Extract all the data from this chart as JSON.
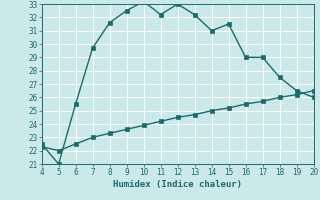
{
  "xlabel": "Humidex (Indice chaleur)",
  "bg_color": "#cce9e9",
  "line_color": "#1a6b6b",
  "grid_color": "#b8d8d8",
  "xlim": [
    4,
    20
  ],
  "ylim": [
    21,
    33
  ],
  "xticks": [
    4,
    5,
    6,
    7,
    8,
    9,
    10,
    11,
    12,
    13,
    14,
    15,
    16,
    17,
    18,
    19,
    20
  ],
  "yticks": [
    21,
    22,
    23,
    24,
    25,
    26,
    27,
    28,
    29,
    30,
    31,
    32,
    33
  ],
  "curve1_x": [
    4,
    5,
    6,
    7,
    8,
    9,
    10,
    11,
    12,
    13,
    14,
    15,
    16,
    17,
    18,
    19,
    20
  ],
  "curve1_y": [
    22.5,
    21.0,
    25.5,
    29.7,
    31.6,
    32.5,
    33.2,
    32.2,
    33.0,
    32.2,
    31.0,
    31.5,
    29.0,
    29.0,
    27.5,
    26.5,
    26.0
  ],
  "curve2_x": [
    4,
    5,
    6,
    7,
    8,
    9,
    10,
    11,
    12,
    13,
    14,
    15,
    16,
    17,
    18,
    19,
    20
  ],
  "curve2_y": [
    22.3,
    22.0,
    22.5,
    23.0,
    23.3,
    23.6,
    23.9,
    24.2,
    24.5,
    24.7,
    25.0,
    25.2,
    25.5,
    25.7,
    26.0,
    26.2,
    26.5
  ],
  "marker_size": 2.5,
  "line_width": 1.0,
  "tick_fontsize": 5.5,
  "xlabel_fontsize": 6.5
}
